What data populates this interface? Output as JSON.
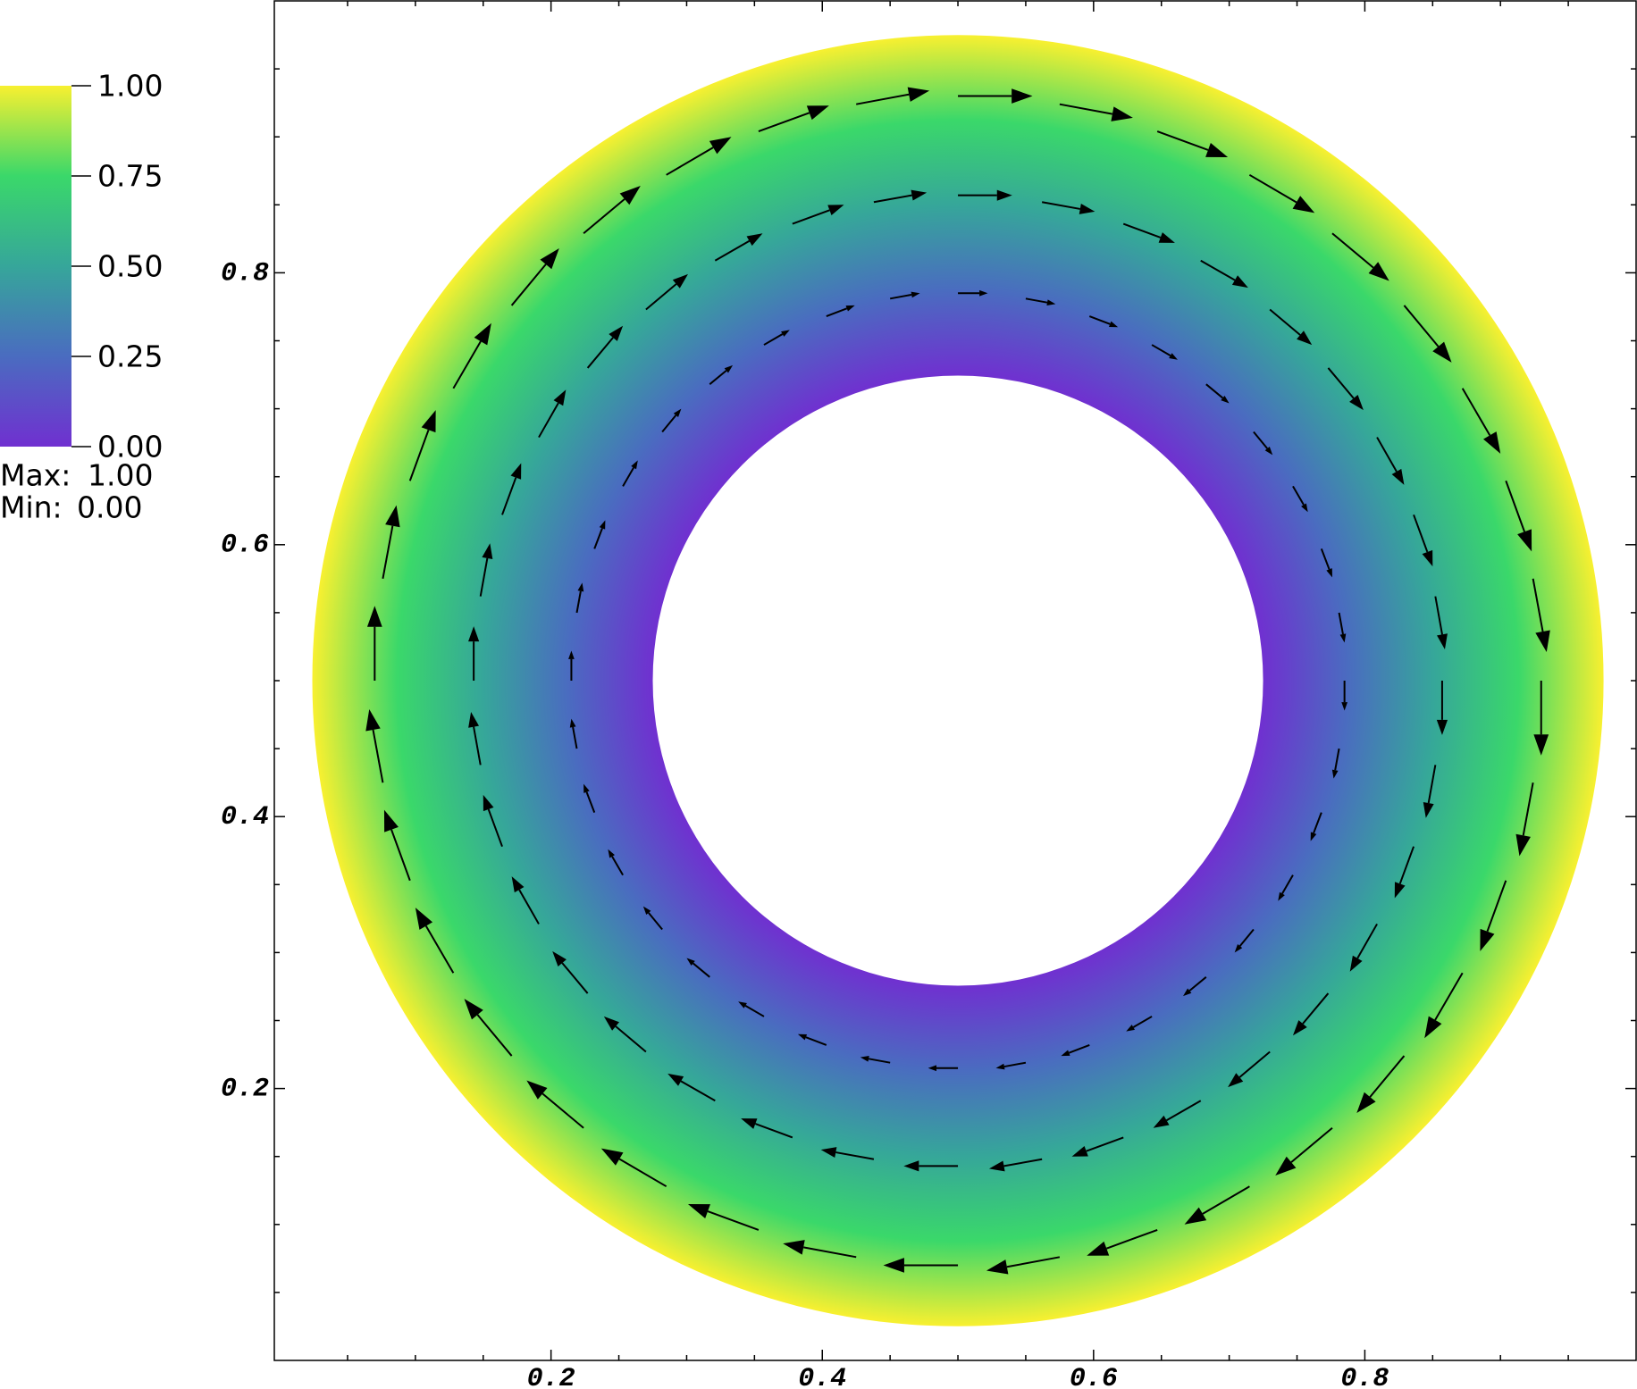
{
  "chart_data": {
    "type": "quiver",
    "xlim": [
      -0.004,
      1.0
    ],
    "ylim": [
      0,
      1.0
    ],
    "xticks": [
      0.2,
      0.4,
      0.6,
      0.8
    ],
    "yticks": [
      0.2,
      0.4,
      0.6,
      0.8
    ],
    "minor_ticks": [
      0.05,
      0.1,
      0.15,
      0.25,
      0.3,
      0.35,
      0.45,
      0.5,
      0.55,
      0.65,
      0.7,
      0.75,
      0.85,
      0.9,
      0.95
    ],
    "field": {
      "center": [
        0.5,
        0.5
      ],
      "inner_radius": 0.225,
      "outer_radius": 0.476
    },
    "colormap": [
      "#7030d0",
      "#4a6cc0",
      "#36a69a",
      "#3ad86a",
      "#f8f030"
    ],
    "clim": [
      0,
      1
    ],
    "colorbar": {
      "ticks": [
        {
          "value": 0,
          "label": "0.00"
        },
        {
          "value": 0.25,
          "label": "0.25"
        },
        {
          "value": 0.5,
          "label": "0.50"
        },
        {
          "value": 0.75,
          "label": "0.75"
        },
        {
          "value": 1,
          "label": "1.00"
        }
      ],
      "max_label": "Max:",
      "max": {
        "value": 1,
        "label": "1.00"
      },
      "min_label": "Min:",
      "min": {
        "value": 0,
        "label": "0.00"
      }
    },
    "arrow_color": "#000000",
    "vectors": [
      {
        "x": [
          0.93,
          0.924,
          0.904,
          0.872,
          0.829,
          0.776,
          0.715,
          0.647,
          0.575,
          0.5,
          0.425,
          0.353,
          0.285,
          0.224,
          0.171,
          0.128,
          0.096,
          0.076,
          0.07,
          0.076,
          0.096,
          0.128,
          0.171,
          0.224,
          0.285,
          0.353,
          0.425,
          0.5,
          0.575,
          0.647,
          0.715,
          0.776,
          0.829,
          0.872,
          0.904,
          0.924
        ],
        "y": [
          0.5,
          0.575,
          0.647,
          0.715,
          0.776,
          0.829,
          0.872,
          0.904,
          0.924,
          0.93,
          0.924,
          0.904,
          0.872,
          0.829,
          0.776,
          0.715,
          0.647,
          0.575,
          0.5,
          0.425,
          0.353,
          0.285,
          0.224,
          0.171,
          0.128,
          0.096,
          0.076,
          0.07,
          0.076,
          0.096,
          0.128,
          0.171,
          0.224,
          0.285,
          0.353,
          0.425
        ],
        "u": [
          0,
          0.01,
          0.019,
          0.028,
          0.035,
          0.042,
          0.048,
          0.052,
          0.054,
          0.055,
          0.054,
          0.052,
          0.048,
          0.042,
          0.035,
          0.028,
          0.019,
          0.01,
          0,
          -0.01,
          -0.019,
          -0.028,
          -0.035,
          -0.042,
          -0.048,
          -0.052,
          -0.054,
          -0.055,
          -0.054,
          -0.052,
          -0.048,
          -0.042,
          -0.035,
          -0.028,
          -0.019,
          -0.01
        ],
        "v": [
          -0.055,
          -0.054,
          -0.052,
          -0.048,
          -0.042,
          -0.035,
          -0.028,
          -0.019,
          -0.01,
          0,
          0.01,
          0.019,
          0.028,
          0.035,
          0.042,
          0.048,
          0.052,
          0.054,
          0.055,
          0.054,
          0.052,
          0.048,
          0.042,
          0.035,
          0.028,
          0.019,
          0.01,
          0,
          -0.01,
          -0.019,
          -0.028,
          -0.035,
          -0.042,
          -0.048,
          -0.052,
          -0.054
        ]
      },
      {
        "x": [
          0.857,
          0.852,
          0.836,
          0.809,
          0.773,
          0.73,
          0.679,
          0.622,
          0.562,
          0.5,
          0.438,
          0.378,
          0.321,
          0.27,
          0.227,
          0.191,
          0.164,
          0.148,
          0.143,
          0.148,
          0.164,
          0.191,
          0.227,
          0.27,
          0.321,
          0.378,
          0.438,
          0.5,
          0.562,
          0.622,
          0.679,
          0.73,
          0.773,
          0.809,
          0.836,
          0.852
        ],
        "y": [
          0.5,
          0.562,
          0.622,
          0.679,
          0.73,
          0.773,
          0.809,
          0.836,
          0.852,
          0.857,
          0.852,
          0.836,
          0.809,
          0.773,
          0.73,
          0.679,
          0.622,
          0.562,
          0.5,
          0.438,
          0.378,
          0.321,
          0.27,
          0.227,
          0.191,
          0.164,
          0.148,
          0.143,
          0.148,
          0.164,
          0.191,
          0.227,
          0.27,
          0.321,
          0.378,
          0.438
        ],
        "u": [
          0,
          0.007,
          0.014,
          0.02,
          0.026,
          0.031,
          0.035,
          0.038,
          0.039,
          0.04,
          0.039,
          0.038,
          0.035,
          0.031,
          0.026,
          0.02,
          0.014,
          0.007,
          0,
          -0.007,
          -0.014,
          -0.02,
          -0.026,
          -0.031,
          -0.035,
          -0.038,
          -0.039,
          -0.04,
          -0.039,
          -0.038,
          -0.035,
          -0.031,
          -0.026,
          -0.02,
          -0.014,
          -0.007
        ],
        "v": [
          -0.04,
          -0.039,
          -0.038,
          -0.035,
          -0.031,
          -0.026,
          -0.02,
          -0.014,
          -0.007,
          0,
          0.007,
          0.014,
          0.02,
          0.026,
          0.031,
          0.035,
          0.038,
          0.039,
          0.04,
          0.039,
          0.038,
          0.035,
          0.031,
          0.026,
          0.02,
          0.014,
          0.007,
          0,
          -0.007,
          -0.014,
          -0.02,
          -0.026,
          -0.031,
          -0.035,
          -0.038,
          -0.039
        ]
      },
      {
        "x": [
          0.785,
          0.781,
          0.768,
          0.747,
          0.718,
          0.683,
          0.643,
          0.597,
          0.55,
          0.5,
          0.45,
          0.403,
          0.357,
          0.317,
          0.282,
          0.253,
          0.232,
          0.219,
          0.215,
          0.219,
          0.232,
          0.253,
          0.282,
          0.317,
          0.357,
          0.403,
          0.45,
          0.5,
          0.55,
          0.597,
          0.643,
          0.683,
          0.718,
          0.747,
          0.768,
          0.781
        ],
        "y": [
          0.5,
          0.55,
          0.597,
          0.643,
          0.683,
          0.718,
          0.747,
          0.768,
          0.781,
          0.785,
          0.781,
          0.768,
          0.747,
          0.718,
          0.683,
          0.643,
          0.597,
          0.55,
          0.5,
          0.45,
          0.403,
          0.357,
          0.317,
          0.282,
          0.253,
          0.232,
          0.219,
          0.215,
          0.219,
          0.232,
          0.253,
          0.282,
          0.317,
          0.357,
          0.403,
          0.45
        ],
        "u": [
          0,
          0.004,
          0.008,
          0.011,
          0.014,
          0.017,
          0.019,
          0.021,
          0.022,
          0.022,
          0.022,
          0.021,
          0.019,
          0.017,
          0.014,
          0.011,
          0.008,
          0.004,
          0,
          -0.004,
          -0.008,
          -0.011,
          -0.014,
          -0.017,
          -0.019,
          -0.021,
          -0.022,
          -0.022,
          -0.022,
          -0.021,
          -0.019,
          -0.017,
          -0.014,
          -0.011,
          -0.008,
          -0.004
        ],
        "v": [
          -0.022,
          -0.022,
          -0.021,
          -0.019,
          -0.017,
          -0.014,
          -0.011,
          -0.008,
          -0.004,
          0,
          0.004,
          0.008,
          0.011,
          0.014,
          0.017,
          0.019,
          0.021,
          0.022,
          0.022,
          0.022,
          0.021,
          0.019,
          0.017,
          0.014,
          0.011,
          0.008,
          0.004,
          0,
          -0.004,
          -0.008,
          -0.011,
          -0.014,
          -0.017,
          -0.019,
          -0.021,
          -0.022
        ]
      }
    ]
  }
}
